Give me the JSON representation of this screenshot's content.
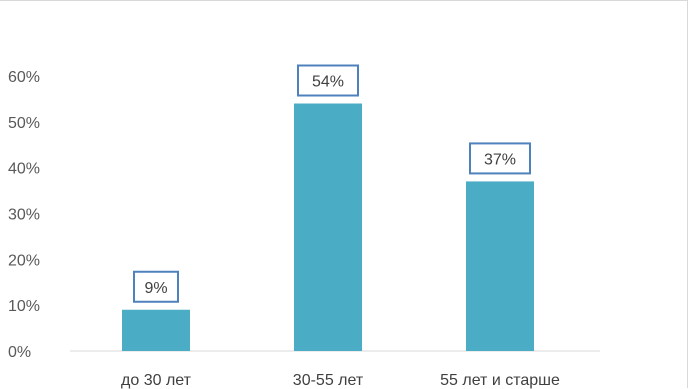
{
  "chart_data": {
    "type": "bar",
    "categories": [
      "до 30 лет",
      "30-55 лет",
      "55 лет и старше"
    ],
    "values": [
      9,
      54,
      37
    ],
    "data_labels": [
      "9%",
      "54%",
      "37%"
    ],
    "y_ticks": [
      0,
      10,
      20,
      30,
      40,
      50,
      60
    ],
    "y_tick_labels": [
      "0%",
      "10%",
      "20%",
      "30%",
      "40%",
      "50%",
      "60%"
    ],
    "ylim": [
      0,
      60
    ],
    "title": "",
    "xlabel": "",
    "ylabel": "",
    "grid": false,
    "legend": "none",
    "colors": {
      "bar": "#4bacc6",
      "label_border": "#4f81bd",
      "axis_text": "#595959"
    }
  }
}
